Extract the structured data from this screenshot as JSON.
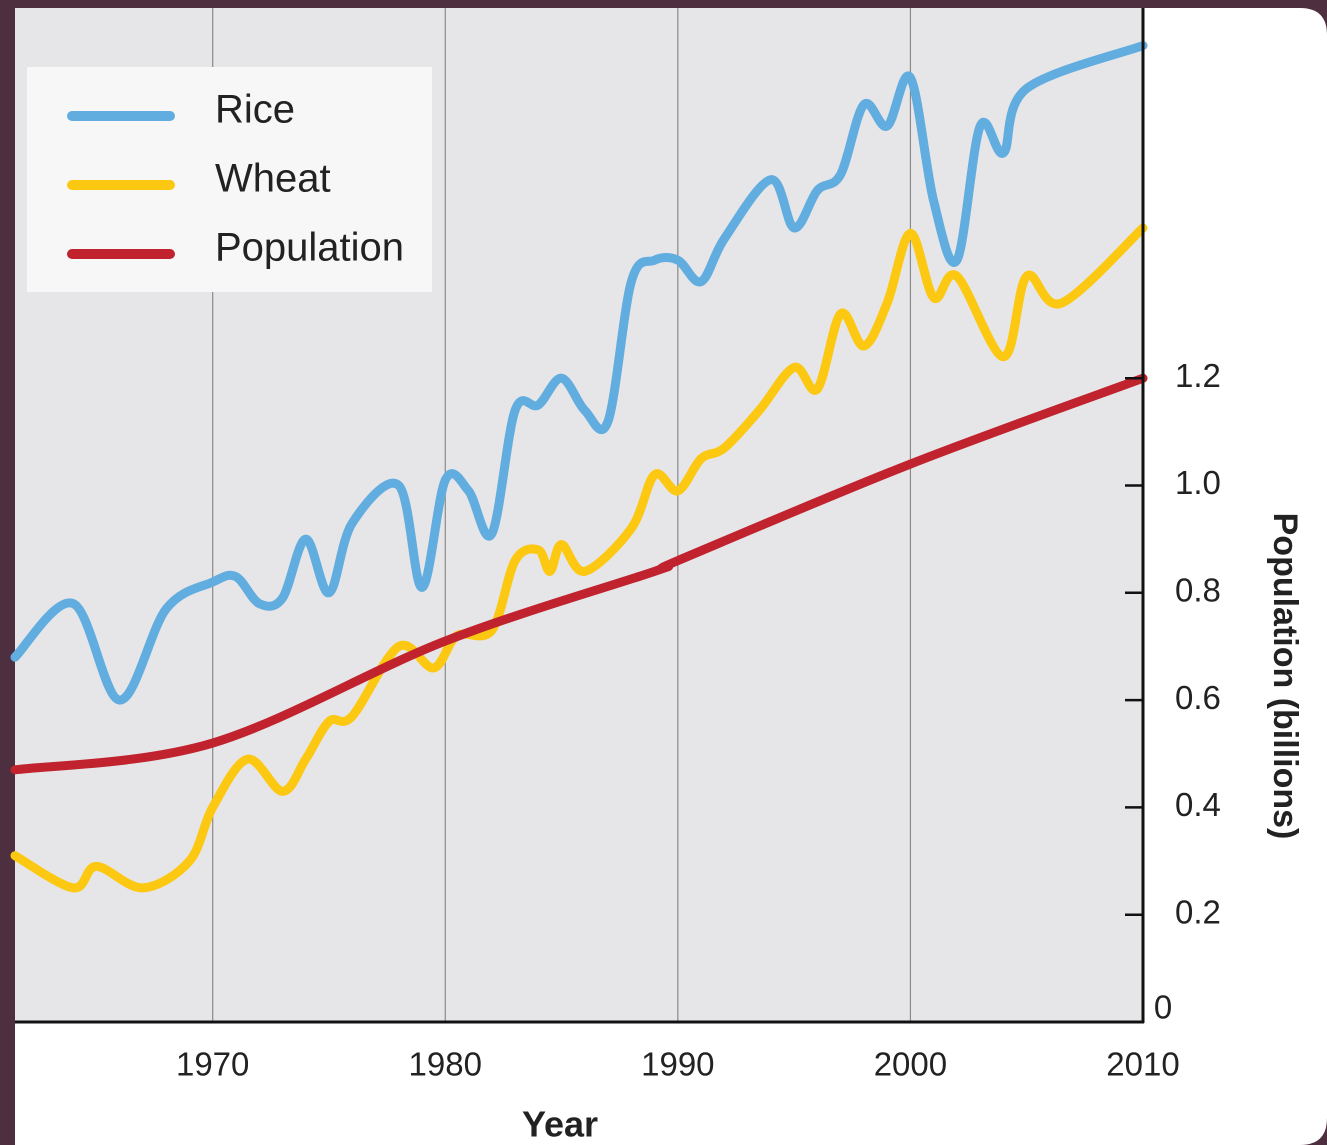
{
  "chart_data": {
    "type": "line",
    "xlabel": "Year",
    "ylabel": "Population (billions)",
    "xlim": [
      1961.5,
      2010
    ],
    "xticks": [
      1970,
      1980,
      1990,
      2000,
      2010
    ],
    "ylim": [
      0,
      1.89
    ],
    "yticks": [
      0,
      0.2,
      0.4,
      0.6,
      0.8,
      {
        "value": 1,
        "label": "1.0"
      },
      1.2
    ],
    "grid": true,
    "legend": "upper left",
    "series": [
      {
        "name": "Rice",
        "color": "#62addf",
        "x": [
          1961.5,
          1964,
          1966,
          1968,
          1970,
          1971,
          1972,
          1973,
          1974,
          1975,
          1976,
          1978,
          1979,
          1980,
          1981,
          1982,
          1983,
          1984,
          1985,
          1986,
          1987,
          1988,
          1989,
          1990,
          1991,
          1992,
          1994,
          1995,
          1996,
          1997,
          1998,
          1999,
          2000,
          2001,
          2002,
          2003,
          2004,
          2005,
          2010
        ],
        "values": [
          0.68,
          0.78,
          0.6,
          0.77,
          0.82,
          0.83,
          0.78,
          0.79,
          0.9,
          0.8,
          0.93,
          1.0,
          0.81,
          1.01,
          0.99,
          0.91,
          1.14,
          1.15,
          1.2,
          1.14,
          1.12,
          1.38,
          1.42,
          1.42,
          1.38,
          1.46,
          1.57,
          1.48,
          1.55,
          1.58,
          1.71,
          1.67,
          1.76,
          1.53,
          1.42,
          1.67,
          1.62,
          1.74,
          1.82
        ]
      },
      {
        "name": "Wheat",
        "color": "#fcc812",
        "x": [
          1961.5,
          1964,
          1965,
          1967,
          1969,
          1970,
          1971.5,
          1973,
          1974,
          1975,
          1976,
          1978,
          1979.5,
          1980.5,
          1982,
          1983,
          1984,
          1984.5,
          1985,
          1986,
          1988,
          1989,
          1990,
          1991,
          1992,
          1993.5,
          1995,
          1996,
          1997,
          1998,
          1999,
          2000,
          2001,
          2002,
          2004,
          2005,
          2006.5,
          2010
        ],
        "values": [
          0.31,
          0.25,
          0.29,
          0.25,
          0.3,
          0.4,
          0.49,
          0.43,
          0.49,
          0.56,
          0.57,
          0.7,
          0.66,
          0.72,
          0.73,
          0.86,
          0.88,
          0.84,
          0.89,
          0.84,
          0.92,
          1.02,
          0.99,
          1.05,
          1.07,
          1.14,
          1.22,
          1.18,
          1.32,
          1.26,
          1.34,
          1.47,
          1.35,
          1.39,
          1.24,
          1.39,
          1.34,
          1.48
        ]
      },
      {
        "name": "Population",
        "color": "#c0232e",
        "x": [
          1961.5,
          1970,
          1980,
          1989,
          1990,
          2000,
          2010
        ],
        "values": [
          0.47,
          0.52,
          0.71,
          0.84,
          0.86,
          1.04,
          1.2
        ]
      }
    ]
  }
}
